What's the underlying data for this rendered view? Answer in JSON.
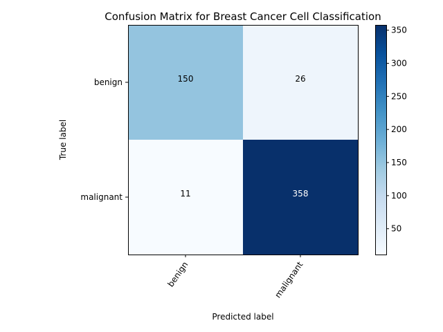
{
  "chart_data": {
    "type": "heatmap",
    "title": "Confusion Matrix for Breast Cancer Cell Classification",
    "xlabel": "Predicted label",
    "ylabel": "True label",
    "x_categories": [
      "benign",
      "malignant"
    ],
    "y_categories": [
      "benign",
      "malignant"
    ],
    "values": [
      [
        150,
        26
      ],
      [
        11,
        358
      ]
    ],
    "colormap": "Blues",
    "colorbar": {
      "min": 11,
      "max": 358,
      "ticks": [
        50,
        100,
        150,
        200,
        250,
        300,
        350
      ]
    },
    "grid": false
  }
}
